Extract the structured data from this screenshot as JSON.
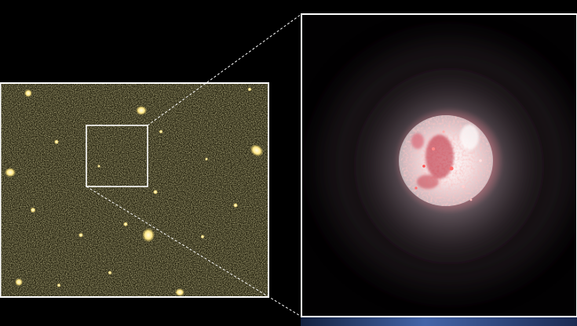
{
  "image": {
    "background_color": "#000000",
    "frame_color": "#ffffff",
    "field_base_color": "#2b2813",
    "source_glow_color": "#fff09a",
    "galaxy_core_color": "#f2c0c0",
    "galaxy_hot_color": "#c01e32",
    "galaxy_halo_color": "#b09aa6",
    "bottom_band_color": "#3a5aa0"
  }
}
